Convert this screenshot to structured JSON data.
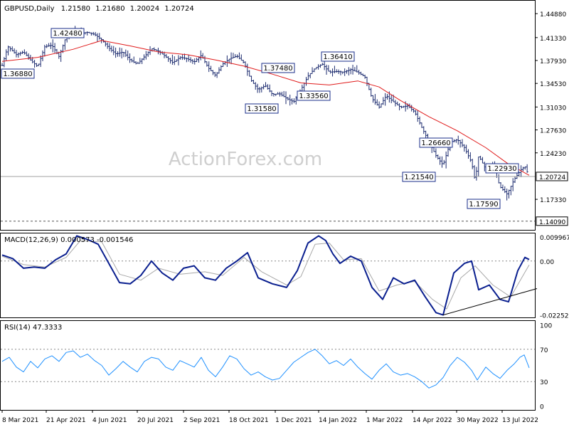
{
  "header": {
    "symbol": "GBPUSD,Daily",
    "ohlc": [
      "1.21580",
      "1.21680",
      "1.20024",
      "1.20724"
    ]
  },
  "watermark": "ActionForex.com",
  "colors": {
    "price": "#1b2a6e",
    "ma": "#e01b1b",
    "macd": "#0a1f8f",
    "signal": "#a8a8a8",
    "rsi": "#1e90ff",
    "grid": "#888888",
    "label_border": "#1a2d8a",
    "watermark": "#cfcfcf"
  },
  "chart_data": [
    {
      "type": "ohlc",
      "panel": "price",
      "ylim": [
        1.128,
        1.468
      ],
      "y_ticks": [
        "1.44880",
        "1.41330",
        "1.37930",
        "1.34530",
        "1.31030",
        "1.27630",
        "1.24230",
        "1.20724",
        "1.17330",
        "1.14090"
      ],
      "y_tick_values": [
        1.4488,
        1.4133,
        1.3793,
        1.3453,
        1.3103,
        1.2763,
        1.2423,
        1.20724,
        1.1733,
        1.1409
      ],
      "current_price": 1.20724,
      "reference_level": 1.1409,
      "price_path": [
        [
          0,
          1.372
        ],
        [
          8,
          1.4
        ],
        [
          20,
          1.388
        ],
        [
          30,
          1.392
        ],
        [
          40,
          1.38
        ],
        [
          50,
          1.37
        ],
        [
          60,
          1.4
        ],
        [
          70,
          1.402
        ],
        [
          80,
          1.385
        ],
        [
          90,
          1.415
        ],
        [
          100,
          1.424
        ],
        [
          110,
          1.42
        ],
        [
          120,
          1.421
        ],
        [
          130,
          1.418
        ],
        [
          140,
          1.41
        ],
        [
          150,
          1.398
        ],
        [
          160,
          1.389
        ],
        [
          170,
          1.392
        ],
        [
          180,
          1.38
        ],
        [
          190,
          1.374
        ],
        [
          200,
          1.385
        ],
        [
          210,
          1.397
        ],
        [
          220,
          1.393
        ],
        [
          230,
          1.385
        ],
        [
          240,
          1.376
        ],
        [
          250,
          1.384
        ],
        [
          260,
          1.382
        ],
        [
          270,
          1.377
        ],
        [
          280,
          1.387
        ],
        [
          290,
          1.368
        ],
        [
          300,
          1.357
        ],
        [
          310,
          1.374
        ],
        [
          320,
          1.382
        ],
        [
          330,
          1.386
        ],
        [
          340,
          1.376
        ],
        [
          350,
          1.35
        ],
        [
          360,
          1.336
        ],
        [
          370,
          1.342
        ],
        [
          380,
          1.329
        ],
        [
          390,
          1.33
        ],
        [
          400,
          1.323
        ],
        [
          410,
          1.318
        ],
        [
          420,
          1.336
        ],
        [
          430,
          1.356
        ],
        [
          440,
          1.368
        ],
        [
          450,
          1.374
        ],
        [
          460,
          1.362
        ],
        [
          470,
          1.363
        ],
        [
          480,
          1.362
        ],
        [
          490,
          1.366
        ],
        [
          500,
          1.362
        ],
        [
          510,
          1.355
        ],
        [
          520,
          1.323
        ],
        [
          530,
          1.31
        ],
        [
          540,
          1.327
        ],
        [
          550,
          1.318
        ],
        [
          560,
          1.31
        ],
        [
          570,
          1.312
        ],
        [
          580,
          1.303
        ],
        [
          590,
          1.28
        ],
        [
          600,
          1.259
        ],
        [
          610,
          1.238
        ],
        [
          620,
          1.224
        ],
        [
          630,
          1.258
        ],
        [
          640,
          1.262
        ],
        [
          650,
          1.25
        ],
        [
          660,
          1.228
        ],
        [
          665,
          1.201
        ],
        [
          670,
          1.238
        ],
        [
          680,
          1.218
        ],
        [
          690,
          1.225
        ],
        [
          700,
          1.192
        ],
        [
          710,
          1.181
        ],
        [
          720,
          1.203
        ],
        [
          730,
          1.218
        ],
        [
          735,
          1.222
        ],
        [
          741,
          1.207
        ]
      ],
      "ma_path": [
        [
          0,
          1.378
        ],
        [
          50,
          1.384
        ],
        [
          100,
          1.396
        ],
        [
          140,
          1.409
        ],
        [
          180,
          1.401
        ],
        [
          220,
          1.392
        ],
        [
          260,
          1.388
        ],
        [
          300,
          1.38
        ],
        [
          340,
          1.371
        ],
        [
          380,
          1.359
        ],
        [
          420,
          1.346
        ],
        [
          460,
          1.343
        ],
        [
          500,
          1.349
        ],
        [
          530,
          1.34
        ],
        [
          560,
          1.32
        ],
        [
          600,
          1.296
        ],
        [
          640,
          1.275
        ],
        [
          680,
          1.25
        ],
        [
          710,
          1.227
        ],
        [
          741,
          1.209
        ]
      ],
      "annotations": [
        {
          "text": "1.42480",
          "value": 1.4248
        },
        {
          "text": "1.36880",
          "value": 1.3688
        },
        {
          "text": "1.37480",
          "value": 1.3748
        },
        {
          "text": "1.36410",
          "value": 1.3641
        },
        {
          "text": "1.33560",
          "value": 1.3356
        },
        {
          "text": "1.31580",
          "value": 1.3158
        },
        {
          "text": "1.26660",
          "value": 1.2666
        },
        {
          "text": "1.22930",
          "value": 1.2293
        },
        {
          "text": "1.21540",
          "value": 1.2154
        },
        {
          "text": "1.17590",
          "value": 1.1759
        }
      ],
      "x_ticks": [
        "8 Mar 2021",
        "21 Apr 2021",
        "4 Jun 2021",
        "20 Jul 2021",
        "2 Sep 2021",
        "18 Oct 2021",
        "1 Dec 2021",
        "14 Jan 2022",
        "1 Mar 2022",
        "14 Apr 2022",
        "30 May 2022",
        "13 Jul 2022"
      ]
    },
    {
      "type": "line",
      "panel": "macd",
      "title": "MACD(12,26,9) 0.000573 -0.001546",
      "ylim": [
        -0.0235,
        0.0115
      ],
      "y_ticks": [
        "0.009967",
        "0.00",
        "-0.022521"
      ],
      "y_tick_values": [
        0.009967,
        0.0,
        -0.022521
      ],
      "macd_path": [
        [
          0,
          0.0025
        ],
        [
          15,
          0.001
        ],
        [
          30,
          -0.003
        ],
        [
          45,
          -0.0025
        ],
        [
          60,
          -0.003
        ],
        [
          75,
          0.0005
        ],
        [
          90,
          0.003
        ],
        [
          105,
          0.0105
        ],
        [
          120,
          0.009
        ],
        [
          135,
          0.007
        ],
        [
          150,
          -0.001
        ],
        [
          165,
          -0.009
        ],
        [
          180,
          -0.0095
        ],
        [
          195,
          -0.006
        ],
        [
          210,
          0.0
        ],
        [
          225,
          -0.005
        ],
        [
          240,
          -0.008
        ],
        [
          255,
          -0.003
        ],
        [
          270,
          -0.002
        ],
        [
          285,
          -0.007
        ],
        [
          300,
          -0.008
        ],
        [
          315,
          -0.003
        ],
        [
          330,
          0.0
        ],
        [
          345,
          0.0035
        ],
        [
          360,
          -0.007
        ],
        [
          380,
          -0.0095
        ],
        [
          400,
          -0.011
        ],
        [
          415,
          -0.004
        ],
        [
          430,
          0.0075
        ],
        [
          445,
          0.0105
        ],
        [
          455,
          0.0085
        ],
        [
          465,
          0.003
        ],
        [
          475,
          -0.001
        ],
        [
          490,
          0.002
        ],
        [
          505,
          0.0
        ],
        [
          520,
          -0.011
        ],
        [
          535,
          -0.016
        ],
        [
          550,
          -0.007
        ],
        [
          565,
          -0.0095
        ],
        [
          580,
          -0.008
        ],
        [
          595,
          -0.015
        ],
        [
          610,
          -0.0215
        ],
        [
          620,
          -0.0225
        ],
        [
          635,
          -0.005
        ],
        [
          650,
          -0.001
        ],
        [
          660,
          0.0
        ],
        [
          670,
          -0.012
        ],
        [
          685,
          -0.01
        ],
        [
          700,
          -0.016
        ],
        [
          712,
          -0.017
        ],
        [
          725,
          -0.004
        ],
        [
          735,
          0.0015
        ],
        [
          741,
          0.0006
        ]
      ],
      "signal_path": [
        [
          0,
          0.002
        ],
        [
          30,
          -0.0015
        ],
        [
          60,
          -0.0025
        ],
        [
          90,
          0.0015
        ],
        [
          110,
          0.0085
        ],
        [
          140,
          0.008
        ],
        [
          165,
          -0.0055
        ],
        [
          195,
          -0.008
        ],
        [
          220,
          -0.003
        ],
        [
          250,
          -0.0055
        ],
        [
          285,
          -0.0045
        ],
        [
          310,
          -0.006
        ],
        [
          340,
          0.0015
        ],
        [
          365,
          -0.0045
        ],
        [
          400,
          -0.01
        ],
        [
          420,
          -0.0065
        ],
        [
          440,
          0.007
        ],
        [
          460,
          0.0075
        ],
        [
          480,
          0.0005
        ],
        [
          505,
          0.001
        ],
        [
          530,
          -0.0125
        ],
        [
          555,
          -0.01
        ],
        [
          580,
          -0.0085
        ],
        [
          605,
          -0.016
        ],
        [
          625,
          -0.02
        ],
        [
          645,
          -0.007
        ],
        [
          665,
          -0.002
        ],
        [
          690,
          -0.01
        ],
        [
          715,
          -0.015
        ],
        [
          741,
          -0.0016
        ]
      ],
      "trendline": [
        [
          620,
          -0.0225
        ],
        [
          752,
          -0.0115
        ]
      ]
    },
    {
      "type": "line",
      "panel": "rsi",
      "title": "RSI(14) 47.3333",
      "ylim": [
        -5,
        105
      ],
      "y_ticks": [
        "100",
        "70",
        "30",
        "0"
      ],
      "y_tick_values": [
        100,
        70,
        30,
        0
      ],
      "rsi_path": [
        [
          0,
          55
        ],
        [
          10,
          60
        ],
        [
          20,
          48
        ],
        [
          30,
          42
        ],
        [
          40,
          55
        ],
        [
          50,
          47
        ],
        [
          60,
          58
        ],
        [
          70,
          62
        ],
        [
          80,
          55
        ],
        [
          90,
          66
        ],
        [
          100,
          68
        ],
        [
          110,
          60
        ],
        [
          120,
          64
        ],
        [
          130,
          56
        ],
        [
          140,
          50
        ],
        [
          150,
          38
        ],
        [
          160,
          46
        ],
        [
          170,
          55
        ],
        [
          180,
          48
        ],
        [
          190,
          42
        ],
        [
          200,
          55
        ],
        [
          210,
          60
        ],
        [
          220,
          58
        ],
        [
          230,
          48
        ],
        [
          240,
          44
        ],
        [
          250,
          56
        ],
        [
          260,
          52
        ],
        [
          270,
          48
        ],
        [
          280,
          60
        ],
        [
          290,
          44
        ],
        [
          300,
          36
        ],
        [
          310,
          48
        ],
        [
          320,
          62
        ],
        [
          330,
          58
        ],
        [
          340,
          46
        ],
        [
          350,
          38
        ],
        [
          360,
          42
        ],
        [
          370,
          36
        ],
        [
          380,
          32
        ],
        [
          390,
          34
        ],
        [
          400,
          44
        ],
        [
          410,
          54
        ],
        [
          420,
          60
        ],
        [
          430,
          66
        ],
        [
          440,
          70
        ],
        [
          450,
          62
        ],
        [
          460,
          52
        ],
        [
          470,
          56
        ],
        [
          480,
          50
        ],
        [
          490,
          58
        ],
        [
          500,
          48
        ],
        [
          510,
          40
        ],
        [
          520,
          33
        ],
        [
          530,
          44
        ],
        [
          540,
          52
        ],
        [
          550,
          42
        ],
        [
          560,
          38
        ],
        [
          570,
          40
        ],
        [
          580,
          36
        ],
        [
          590,
          30
        ],
        [
          600,
          22
        ],
        [
          610,
          26
        ],
        [
          620,
          35
        ],
        [
          630,
          50
        ],
        [
          640,
          60
        ],
        [
          650,
          54
        ],
        [
          660,
          44
        ],
        [
          668,
          32
        ],
        [
          680,
          48
        ],
        [
          690,
          40
        ],
        [
          700,
          34
        ],
        [
          710,
          44
        ],
        [
          720,
          52
        ],
        [
          728,
          60
        ],
        [
          734,
          63
        ],
        [
          741,
          47
        ]
      ]
    }
  ]
}
